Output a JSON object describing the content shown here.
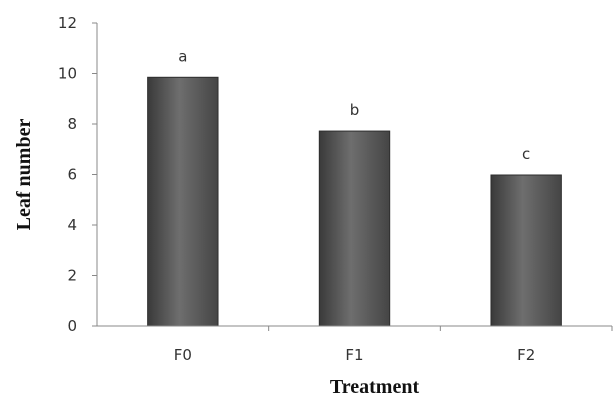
{
  "chart_data": {
    "type": "bar",
    "title": "",
    "xlabel": "Treatment",
    "ylabel": "Leaf number",
    "categories": [
      "F0",
      "F1",
      "F2"
    ],
    "values": [
      9.85,
      7.72,
      5.98
    ],
    "data_labels": [
      "a",
      "b",
      "c"
    ],
    "ylim": [
      0,
      12
    ],
    "yticks": [
      0,
      2,
      4,
      6,
      8,
      10,
      12
    ],
    "grid": false,
    "legend": "none",
    "bar_color": "#555555"
  }
}
